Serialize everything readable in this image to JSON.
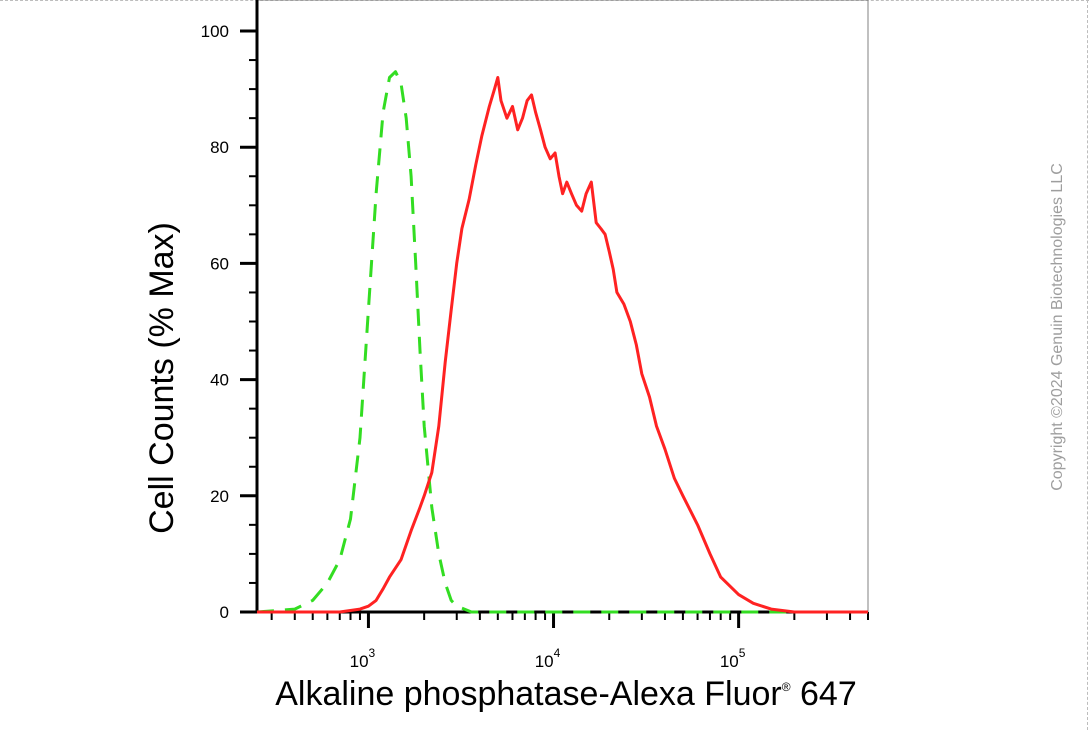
{
  "chart_data": {
    "type": "line",
    "title": "",
    "xlabel": "Alkaline phosphatase-Alexa Fluor",
    "xlabel_sup": "®",
    "xlabel_suffix": " 647",
    "ylabel": "Cell Counts (% Max)",
    "xscale": "log",
    "xlim": [
      250,
      500000
    ],
    "ylim": [
      0,
      103
    ],
    "x_ticks": [
      {
        "base": "10",
        "exp": "3",
        "value": 1000
      },
      {
        "base": "10",
        "exp": "4",
        "value": 10000
      },
      {
        "base": "10",
        "exp": "5",
        "value": 100000
      }
    ],
    "y_ticks": [
      "0",
      "20",
      "40",
      "60",
      "80",
      "100"
    ],
    "y_tick_values": [
      0,
      20,
      40,
      60,
      80,
      100
    ],
    "grid": false,
    "series": [
      {
        "style": "dashed",
        "color": "#33dd22",
        "x": [
          250,
          400,
          500,
          600,
          700,
          800,
          900,
          1000,
          1100,
          1200,
          1300,
          1400,
          1500,
          1600,
          1700,
          1800,
          1900,
          2000,
          2200,
          2400,
          2600,
          2800,
          3000,
          3300,
          3600,
          4000,
          5000,
          10000,
          100000,
          500000
        ],
        "y": [
          0,
          0.5,
          2,
          5,
          9,
          16,
          30,
          52,
          72,
          86,
          92,
          93,
          91,
          85,
          75,
          60,
          45,
          32,
          18,
          10,
          5,
          2,
          1,
          0.5,
          0,
          0,
          0,
          0,
          0,
          0
        ]
      },
      {
        "style": "solid",
        "color": "#ff2222",
        "x": [
          250,
          700,
          900,
          1000,
          1100,
          1200,
          1300,
          1500,
          1700,
          1900,
          2000,
          2200,
          2400,
          2600,
          2800,
          3000,
          3200,
          3500,
          3800,
          4100,
          4500,
          4800,
          5000,
          5200,
          5600,
          6000,
          6400,
          6800,
          7200,
          7600,
          8000,
          8500,
          9000,
          9600,
          10200,
          10700,
          11200,
          11800,
          12500,
          13300,
          14200,
          15000,
          16000,
          17000,
          18000,
          19000,
          20000,
          21000,
          22000,
          24000,
          26000,
          28000,
          30000,
          33000,
          36000,
          40000,
          45000,
          50000,
          60000,
          70000,
          80000,
          100000,
          120000,
          150000,
          200000,
          500000
        ],
        "y": [
          0,
          0,
          0.5,
          1,
          2,
          4,
          6,
          9,
          14,
          18,
          20,
          24,
          32,
          43,
          52,
          60,
          66,
          71,
          77,
          82,
          87,
          90,
          92,
          88,
          85,
          87,
          83,
          85,
          88,
          89,
          86,
          83,
          80,
          78,
          79,
          75,
          72,
          74,
          72,
          70,
          69,
          72,
          74,
          67,
          66,
          65,
          62,
          59,
          55,
          53,
          50,
          46,
          41,
          37,
          32,
          28,
          23,
          20,
          15,
          10,
          6,
          3,
          1.5,
          0.5,
          0,
          0
        ]
      }
    ]
  },
  "watermark": "Copyright ©2024 Genuin Biotechnologies LLC"
}
